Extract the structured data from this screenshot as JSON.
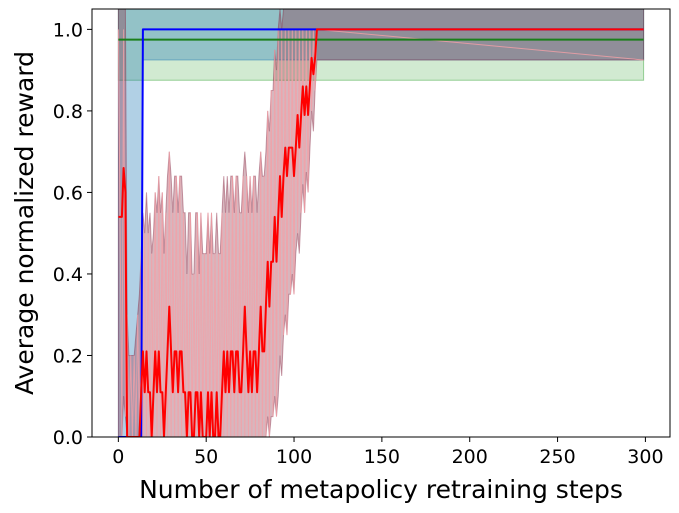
{
  "chart_data": {
    "type": "line",
    "title": "",
    "xlabel": "Number of metapolicy retraining steps",
    "ylabel": "Average normalized reward",
    "xlim": [
      -15,
      314
    ],
    "ylim": [
      0.0,
      1.05
    ],
    "xticks": [
      0,
      50,
      100,
      150,
      200,
      250,
      300
    ],
    "yticks": [
      0.0,
      0.2,
      0.4,
      0.6,
      0.8,
      1.0
    ],
    "xtick_labels": [
      "0",
      "50",
      "100",
      "150",
      "200",
      "250",
      "300"
    ],
    "ytick_labels": [
      "0.0",
      "0.2",
      "0.4",
      "0.6",
      "0.8",
      "1.0"
    ],
    "grid": false,
    "legend": "none",
    "series": [
      {
        "color": "#2ca02c",
        "line_color": "#1a7f1a",
        "x": [
          0,
          299
        ],
        "y": [
          0.975,
          0.975
        ],
        "band_upper": [
          1.05,
          1.05
        ],
        "band_lower": [
          0.875,
          0.875
        ],
        "band_opacity": 0.22
      },
      {
        "color": "#1f77b4",
        "line_color": "#0000ff",
        "x": [
          0,
          13,
          14,
          299
        ],
        "y": [
          0.0,
          0.0,
          1.0,
          1.0
        ],
        "band_upper": [
          1.05,
          1.05,
          1.05,
          1.05
        ],
        "band_lower": [
          0.0,
          0.0,
          0.925,
          0.925
        ],
        "band_opacity": 0.35
      },
      {
        "color": "#8c2d46",
        "line_color": "#ff0000",
        "x": [
          0,
          2,
          3,
          4,
          5,
          6,
          7,
          8,
          9,
          10,
          11,
          12,
          13,
          14,
          15,
          16,
          17,
          18,
          19,
          20,
          21,
          22,
          23,
          24,
          25,
          26,
          27,
          28,
          29,
          30,
          31,
          32,
          33,
          34,
          35,
          36,
          37,
          38,
          39,
          40,
          41,
          42,
          43,
          44,
          45,
          46,
          47,
          48,
          49,
          50,
          51,
          52,
          53,
          54,
          55,
          56,
          57,
          58,
          59,
          60,
          61,
          62,
          63,
          64,
          65,
          66,
          67,
          68,
          69,
          70,
          71,
          72,
          73,
          74,
          75,
          76,
          77,
          78,
          79,
          80,
          81,
          82,
          83,
          84,
          85,
          86,
          87,
          88,
          89,
          90,
          91,
          92,
          93,
          94,
          95,
          96,
          97,
          98,
          99,
          100,
          101,
          102,
          103,
          104,
          105,
          106,
          107,
          108,
          109,
          110,
          111,
          112,
          113,
          299
        ],
        "y": [
          0.54,
          0.54,
          0.66,
          0.6,
          0.0,
          0.0,
          0.0,
          0.0,
          0.0,
          0.0,
          0.0,
          0.0,
          0.11,
          0.21,
          0.11,
          0.21,
          0.11,
          0.11,
          0.0,
          0.11,
          0.21,
          0.11,
          0.21,
          0.11,
          0.11,
          0.0,
          0.11,
          0.21,
          0.32,
          0.21,
          0.11,
          0.21,
          0.21,
          0.11,
          0.21,
          0.21,
          0.11,
          0.11,
          0.0,
          0.11,
          0.11,
          0.0,
          0.0,
          0.11,
          0.11,
          0.0,
          0.11,
          0.0,
          0.0,
          0.0,
          0.11,
          0.0,
          0.11,
          0.0,
          0.0,
          0.11,
          0.0,
          0.0,
          0.11,
          0.21,
          0.11,
          0.21,
          0.11,
          0.21,
          0.21,
          0.11,
          0.21,
          0.21,
          0.11,
          0.11,
          0.21,
          0.32,
          0.21,
          0.11,
          0.21,
          0.11,
          0.21,
          0.21,
          0.11,
          0.21,
          0.32,
          0.21,
          0.21,
          0.32,
          0.43,
          0.32,
          0.43,
          0.43,
          0.54,
          0.43,
          0.54,
          0.64,
          0.54,
          0.64,
          0.71,
          0.64,
          0.71,
          0.71,
          0.71,
          0.64,
          0.71,
          0.79,
          0.71,
          0.79,
          0.86,
          0.79,
          0.86,
          0.79,
          0.86,
          0.93,
          0.89,
          0.93,
          1.0,
          1.0
        ],
        "band_upper": [
          1.05,
          1.05,
          1.05,
          1.05,
          0.3,
          0.2,
          0.2,
          0.2,
          0.2,
          0.25,
          0.3,
          0.35,
          0.45,
          0.55,
          0.5,
          0.6,
          0.5,
          0.55,
          0.45,
          0.5,
          0.6,
          0.55,
          0.64,
          0.55,
          0.6,
          0.45,
          0.55,
          0.64,
          0.7,
          0.64,
          0.55,
          0.64,
          0.64,
          0.55,
          0.64,
          0.64,
          0.55,
          0.55,
          0.4,
          0.55,
          0.55,
          0.4,
          0.4,
          0.55,
          0.55,
          0.4,
          0.55,
          0.45,
          0.45,
          0.45,
          0.55,
          0.45,
          0.55,
          0.45,
          0.45,
          0.55,
          0.45,
          0.45,
          0.55,
          0.64,
          0.55,
          0.64,
          0.55,
          0.64,
          0.64,
          0.55,
          0.64,
          0.64,
          0.55,
          0.55,
          0.64,
          0.7,
          0.64,
          0.55,
          0.64,
          0.55,
          0.64,
          0.64,
          0.55,
          0.64,
          0.7,
          0.64,
          0.64,
          0.7,
          0.8,
          0.75,
          0.85,
          0.85,
          0.95,
          0.9,
          1.0,
          1.05,
          1.0,
          1.05,
          1.05,
          1.05,
          1.05,
          1.05,
          1.05,
          1.05,
          1.05,
          1.05,
          1.05,
          1.05,
          1.05,
          1.05,
          1.05,
          1.05,
          1.05,
          1.05,
          1.05,
          1.05,
          1.05,
          1.05
        ],
        "band_lower": [
          0.0,
          0.0,
          0.1,
          0.05,
          0.0,
          0.0,
          0.0,
          0.0,
          0.0,
          0.0,
          0.0,
          0.0,
          0.0,
          0.0,
          0.0,
          0.0,
          0.0,
          0.0,
          0.0,
          0.0,
          0.0,
          0.0,
          0.0,
          0.0,
          0.0,
          0.0,
          0.0,
          0.0,
          0.0,
          0.0,
          0.0,
          0.0,
          0.0,
          0.0,
          0.0,
          0.0,
          0.0,
          0.0,
          0.0,
          0.0,
          0.0,
          0.0,
          0.0,
          0.0,
          0.0,
          0.0,
          0.0,
          0.0,
          0.0,
          0.0,
          0.0,
          0.0,
          0.0,
          0.0,
          0.0,
          0.0,
          0.0,
          0.0,
          0.0,
          0.0,
          0.0,
          0.0,
          0.0,
          0.0,
          0.0,
          0.0,
          0.0,
          0.0,
          0.0,
          0.0,
          0.0,
          0.0,
          0.0,
          0.0,
          0.0,
          0.0,
          0.0,
          0.0,
          0.0,
          0.0,
          0.0,
          0.0,
          0.0,
          0.0,
          0.05,
          0.0,
          0.05,
          0.05,
          0.1,
          0.05,
          0.1,
          0.2,
          0.15,
          0.25,
          0.3,
          0.25,
          0.35,
          0.35,
          0.4,
          0.35,
          0.45,
          0.5,
          0.45,
          0.55,
          0.62,
          0.55,
          0.65,
          0.6,
          0.7,
          0.8,
          0.75,
          0.85,
          0.925,
          0.925
        ],
        "band_opacity": 0.35
      }
    ]
  }
}
